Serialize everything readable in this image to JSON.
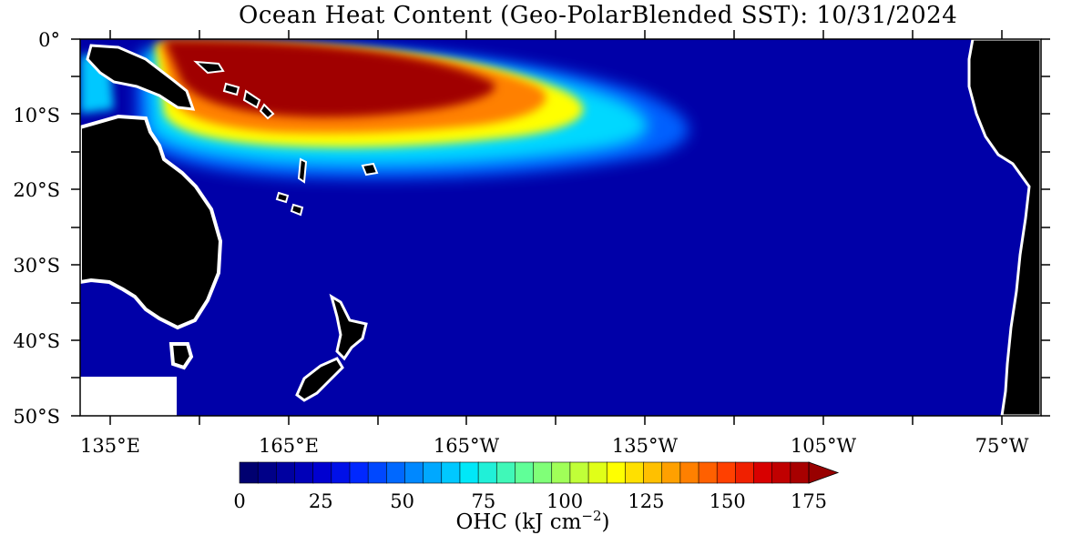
{
  "title": "Ocean Heat Content (Geo-PolarBlended SST): 10/31/2024",
  "lat_labels": [
    "0°",
    "10°S",
    "20°S",
    "30°S",
    "40°S",
    "50°S"
  ],
  "lon_labels": [
    "135°E",
    "165°E",
    "165°W",
    "135°W",
    "105°W",
    "75°W"
  ],
  "colorbar": {
    "ticks": [
      "0",
      "25",
      "50",
      "75",
      "100",
      "125",
      "150",
      "175"
    ],
    "unit_label": "OHC (kJ cm",
    "unit_exp": "−2",
    "unit_close": ")",
    "colors": [
      "#000070",
      "#000088",
      "#0000a0",
      "#0000b8",
      "#0000d0",
      "#0010e8",
      "#0028ff",
      "#0048ff",
      "#0068ff",
      "#0088ff",
      "#00a8ff",
      "#00c8ff",
      "#00e8f8",
      "#20f0d8",
      "#40f8b8",
      "#60ff98",
      "#80ff78",
      "#a0ff58",
      "#c0ff38",
      "#e0ff18",
      "#ffff00",
      "#ffe000",
      "#ffc000",
      "#ffa000",
      "#ff8000",
      "#ff6000",
      "#ff4000",
      "#f02000",
      "#d80000",
      "#c00000",
      "#a80000"
    ],
    "over_color": "#980000"
  },
  "colors": {
    "ocean": "#0000a8",
    "land": "#000000",
    "ice_fringe": "#ffffff",
    "warm_core": "#a00000"
  }
}
